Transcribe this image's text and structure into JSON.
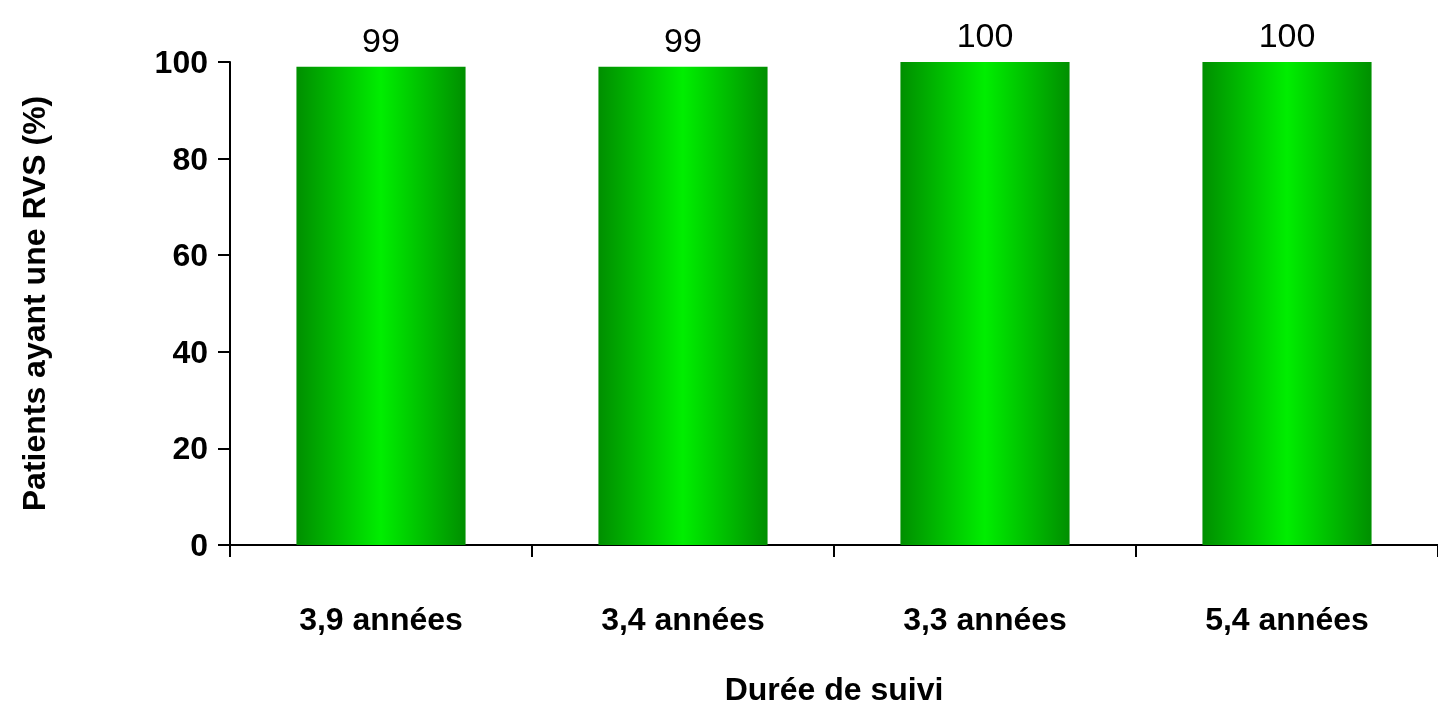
{
  "chart_data": {
    "type": "bar",
    "xlabel": "Durée de suivi",
    "ylabel": "Patients ayant une RVS (%)",
    "categories": [
      "3,9 années",
      "3,4 années",
      "3,3 années",
      "5,4 années"
    ],
    "values": [
      99,
      99,
      100,
      100
    ],
    "color": "#00ee00",
    "ylim": [
      0,
      100
    ],
    "yticks": [
      0,
      20,
      40,
      60,
      80,
      100
    ],
    "grid": false,
    "data_labels": true
  }
}
